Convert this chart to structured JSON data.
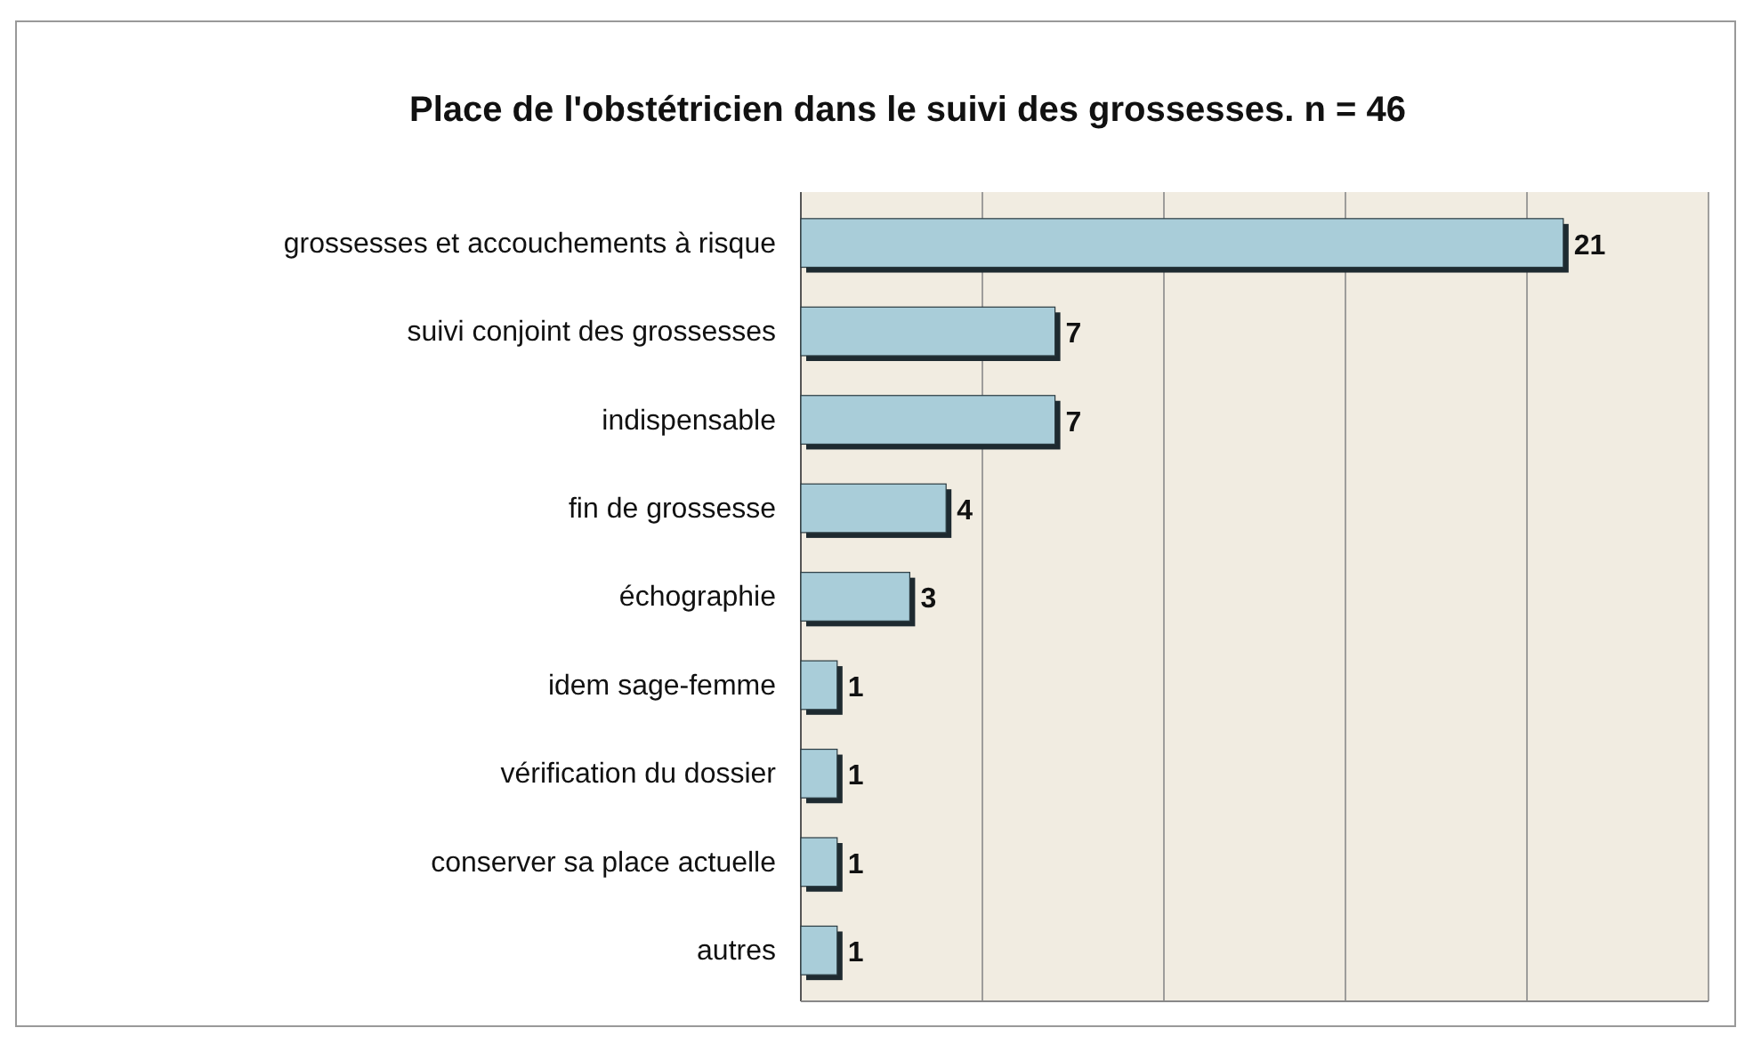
{
  "chart_data": {
    "type": "bar",
    "orientation": "horizontal",
    "title": "Place de l'obstétricien dans le suivi des grossesses. n = 46",
    "categories": [
      "grossesses et accouchements à risque",
      "suivi conjoint des grossesses",
      "indispensable",
      "fin de grossesse",
      "échographie",
      "idem sage-femme",
      "vérification du dossier",
      "conserver sa place actuelle",
      "autres"
    ],
    "values": [
      21,
      7,
      7,
      4,
      3,
      1,
      1,
      1,
      1
    ],
    "color": "#a9cdd9",
    "data_labels": true,
    "grid": "x",
    "tick_labels": "y",
    "xlim": [
      0,
      25
    ],
    "xticks": [
      {
        "value": 0,
        "label": null
      },
      {
        "value": 5,
        "label": null
      },
      {
        "value": 10,
        "label": null
      },
      {
        "value": 15,
        "label": null
      },
      {
        "value": 20,
        "label": null
      },
      {
        "value": 25,
        "label": null
      }
    ]
  }
}
